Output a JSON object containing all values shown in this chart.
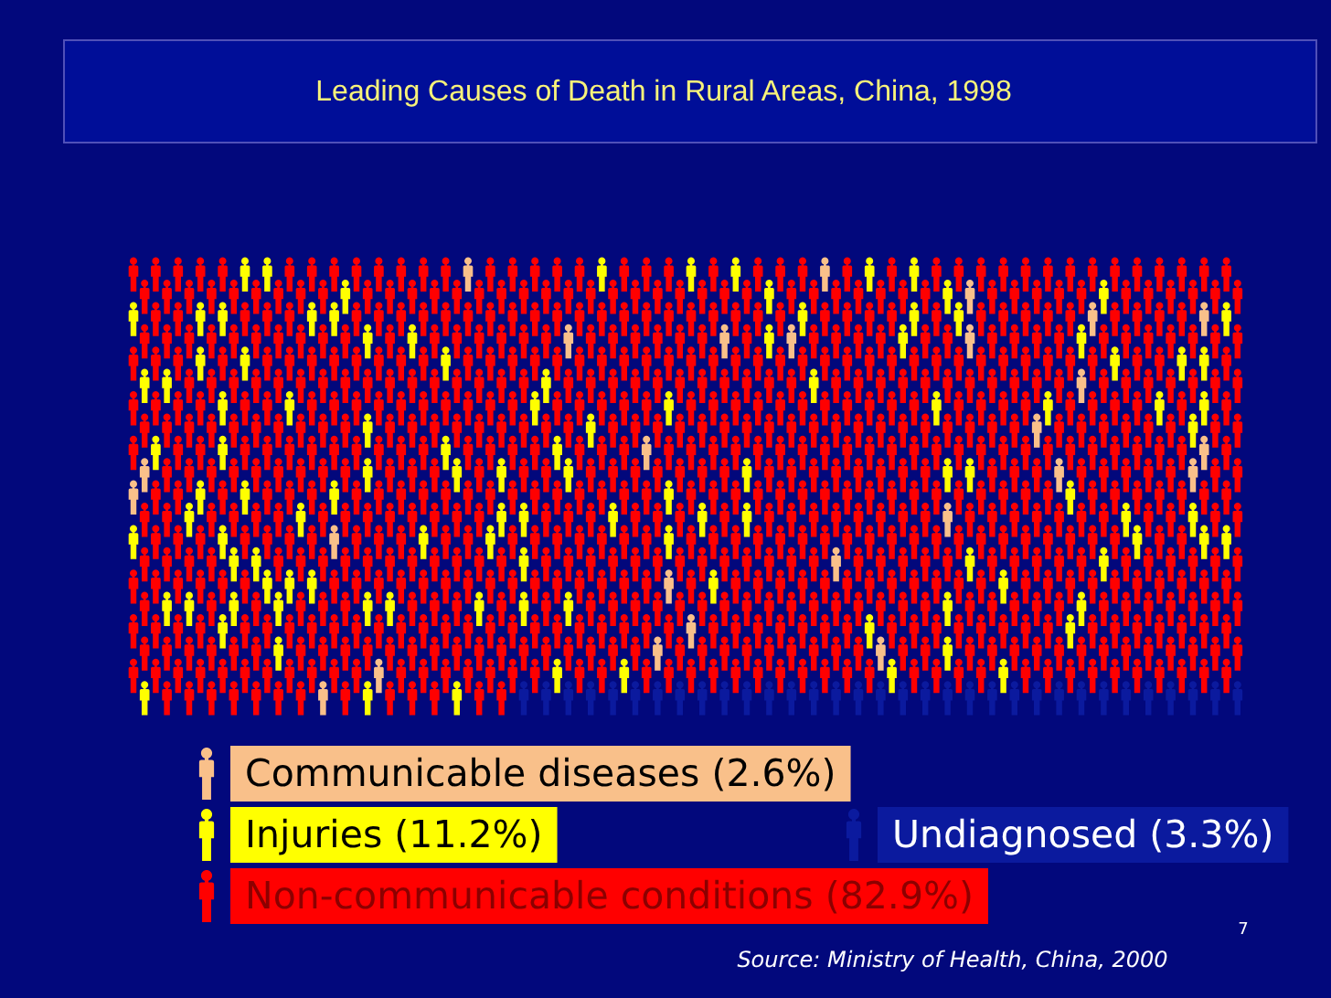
{
  "chart_data": {
    "type": "other",
    "title": "Leading Causes of Death in Rural Areas, China, 1998",
    "categories": [
      "Communicable diseases",
      "Injuries",
      "Non-communicable conditions",
      "Undiagnosed"
    ],
    "values": [
      2.6,
      11.2,
      82.9,
      3.3
    ],
    "value_labels": [
      "(2.6%)",
      "(11.2%)",
      "(82.9%)",
      "(3.3%)"
    ],
    "colors": [
      "#f9c08a",
      "#ffff00",
      "#ff0000",
      "#0b1a9e"
    ],
    "annotations": [
      "Source:  Ministry of Health, China, 2000",
      "7"
    ]
  }
}
